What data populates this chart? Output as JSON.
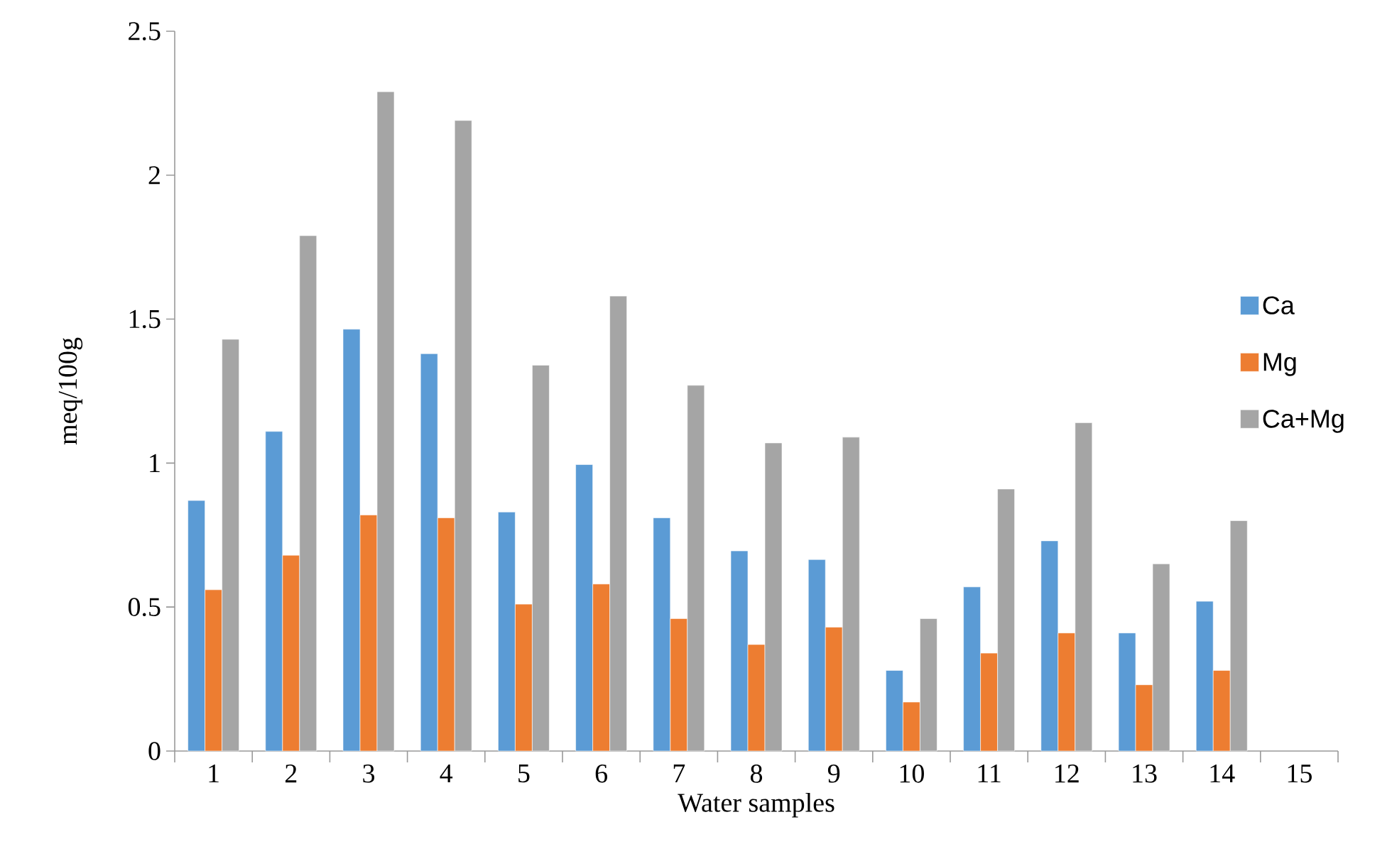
{
  "chart_data": {
    "type": "bar",
    "xlabel": "Water samples",
    "ylabel": "meq/100g",
    "categories": [
      "1",
      "2",
      "3",
      "4",
      "5",
      "6",
      "7",
      "8",
      "9",
      "10",
      "11",
      "12",
      "13",
      "14",
      "15"
    ],
    "series": [
      {
        "name": "Ca",
        "color": "#5b9bd5",
        "values": [
          0.87,
          1.11,
          1.465,
          1.38,
          0.83,
          0.995,
          0.81,
          0.695,
          0.665,
          0.28,
          0.57,
          0.73,
          0.41,
          0.52,
          null
        ]
      },
      {
        "name": "Mg",
        "color": "#ed7d31",
        "values": [
          0.56,
          0.68,
          0.82,
          0.81,
          0.51,
          0.58,
          0.46,
          0.37,
          0.43,
          0.17,
          0.34,
          0.41,
          0.23,
          0.28,
          null
        ]
      },
      {
        "name": "Ca+Mg",
        "color": "#a5a5a5",
        "values": [
          1.43,
          1.79,
          2.29,
          2.19,
          1.34,
          1.58,
          1.27,
          1.07,
          1.09,
          0.46,
          0.91,
          1.14,
          0.65,
          0.8,
          null
        ]
      }
    ],
    "ylim": [
      0,
      2.5
    ],
    "yticks": [
      0,
      0.5,
      1,
      1.5,
      2,
      2.5
    ],
    "grid": false,
    "legend": "right"
  }
}
